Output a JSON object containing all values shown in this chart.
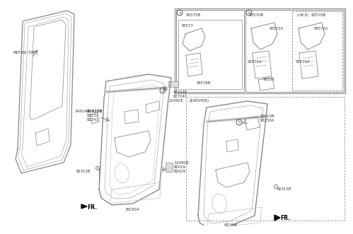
{
  "bg_color": "#ffffff",
  "line_color": "#777777",
  "text_color": "#333333",
  "dark_color": "#444444",
  "ref_label": "REF.60-790",
  "fr_label": "FR.",
  "label_8230A": "8230A",
  "label_8230E": "8230E",
  "driver_label": "(DRIVER)",
  "ims_label": "(I.M.S)",
  "sec_a": "a",
  "sec_b": "b",
  "upper_parts_a": [
    "93575B",
    "93577",
    "93576B"
  ],
  "upper_parts_b": [
    "93570B",
    "93572A",
    "93571A",
    "93530"
  ],
  "upper_parts_ims": [
    "93570B",
    "93572A",
    "93571A"
  ],
  "main_parts_left": [
    "1491AD",
    "82620B",
    "82231",
    "82241"
  ],
  "main_parts_top": [
    "82714E",
    "82724C",
    "1249GE"
  ],
  "main_parts_lower_right": [
    "1249GE",
    "82619",
    "82629"
  ],
  "main_parts_bottom_left": "82315B",
  "driver_parts": [
    "82610B",
    "93250A"
  ],
  "driver_bottom_left": "82315B"
}
